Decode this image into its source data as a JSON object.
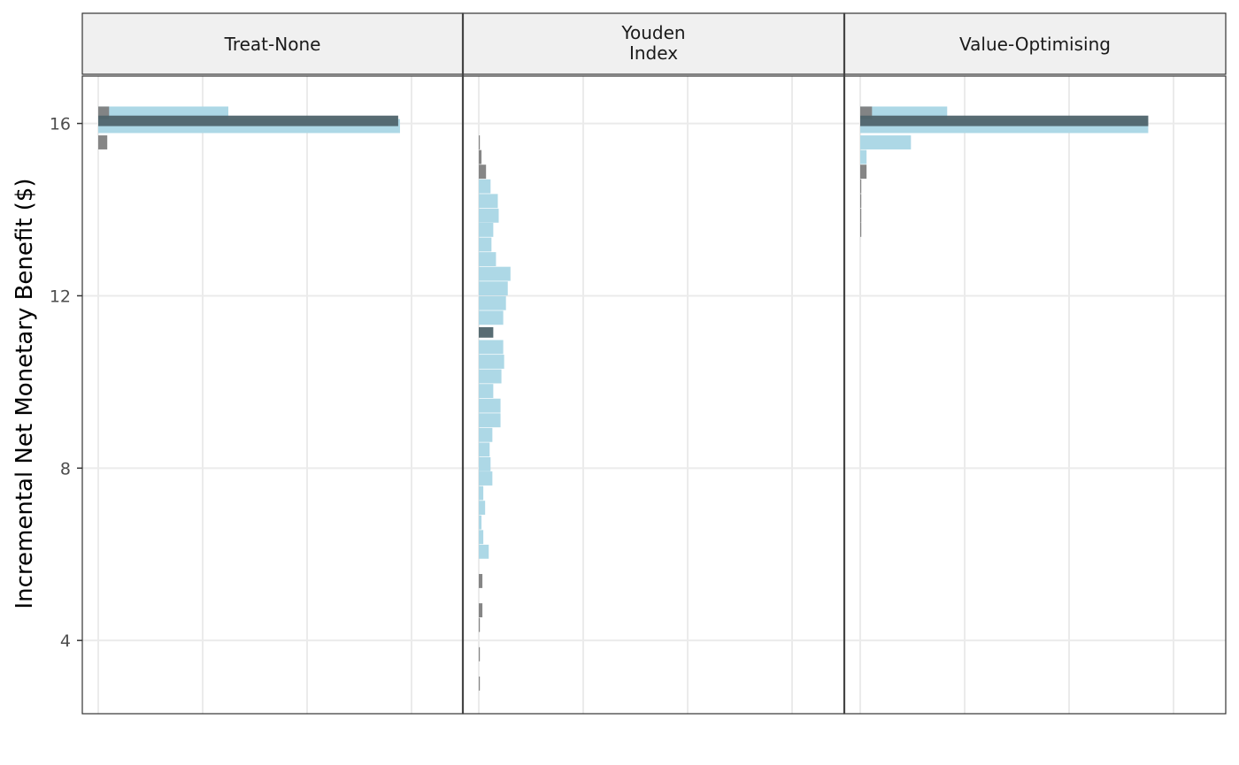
{
  "chart_data": {
    "type": "bar",
    "orientation": "horizontal-histogram",
    "ylabel": "Incremental Net Monetary Benefit ($)",
    "xlabel": "",
    "ylim": [
      2.3,
      17.1
    ],
    "yticks": [
      4,
      8,
      12,
      16
    ],
    "ytick_labels": [
      "4",
      "8",
      "12",
      "16"
    ],
    "bin_width": 0.338,
    "grid": true,
    "colors": {
      "light": "#add8e6",
      "grey": "#7f7f7f",
      "dark": "#4f646c"
    },
    "panels": [
      {
        "strip_lines": [
          "Treat-None"
        ],
        "bins": [
          {
            "y": 16.23,
            "value": 72,
            "color": "light"
          },
          {
            "y": 16.23,
            "value": 6,
            "color": "grey"
          },
          {
            "y": 15.94,
            "value": 167,
            "color": "light"
          },
          {
            "y": 16.06,
            "value": 166,
            "color": "dark"
          },
          {
            "y": 15.56,
            "value": 5,
            "color": "grey"
          }
        ]
      },
      {
        "strip_lines": [
          "Youden",
          "Index"
        ],
        "bins": [
          {
            "y": 15.56,
            "value": 0.3,
            "color": "grey"
          },
          {
            "y": 15.22,
            "value": 1.5,
            "color": "grey"
          },
          {
            "y": 14.88,
            "value": 4,
            "color": "grey"
          },
          {
            "y": 14.54,
            "value": 6.5,
            "color": "light"
          },
          {
            "y": 14.2,
            "value": 10.5,
            "color": "light"
          },
          {
            "y": 13.86,
            "value": 11,
            "color": "light"
          },
          {
            "y": 13.53,
            "value": 8,
            "color": "light"
          },
          {
            "y": 13.19,
            "value": 7,
            "color": "light"
          },
          {
            "y": 12.85,
            "value": 9.5,
            "color": "light"
          },
          {
            "y": 12.51,
            "value": 17.5,
            "color": "light"
          },
          {
            "y": 12.17,
            "value": 16,
            "color": "light"
          },
          {
            "y": 11.83,
            "value": 15,
            "color": "light"
          },
          {
            "y": 11.49,
            "value": 13.5,
            "color": "light"
          },
          {
            "y": 11.15,
            "value": 8,
            "color": "dark"
          },
          {
            "y": 10.81,
            "value": 13.5,
            "color": "light"
          },
          {
            "y": 10.47,
            "value": 14,
            "color": "light"
          },
          {
            "y": 10.13,
            "value": 12.5,
            "color": "light"
          },
          {
            "y": 9.79,
            "value": 8,
            "color": "light"
          },
          {
            "y": 9.45,
            "value": 12,
            "color": "light"
          },
          {
            "y": 9.11,
            "value": 12,
            "color": "light"
          },
          {
            "y": 8.77,
            "value": 7.5,
            "color": "light"
          },
          {
            "y": 8.43,
            "value": 6,
            "color": "light"
          },
          {
            "y": 8.09,
            "value": 6.5,
            "color": "light"
          },
          {
            "y": 7.76,
            "value": 7.5,
            "color": "light"
          },
          {
            "y": 7.42,
            "value": 2.5,
            "color": "light"
          },
          {
            "y": 7.08,
            "value": 3.5,
            "color": "light"
          },
          {
            "y": 6.74,
            "value": 1.5,
            "color": "light"
          },
          {
            "y": 6.4,
            "value": 2.5,
            "color": "light"
          },
          {
            "y": 6.06,
            "value": 5.5,
            "color": "light"
          },
          {
            "y": 5.38,
            "value": 2,
            "color": "grey"
          },
          {
            "y": 4.7,
            "value": 2,
            "color": "grey"
          },
          {
            "y": 4.36,
            "value": 0.5,
            "color": "grey"
          },
          {
            "y": 3.68,
            "value": 0.3,
            "color": "grey"
          },
          {
            "y": 3.0,
            "value": 0.3,
            "color": "grey"
          }
        ]
      },
      {
        "strip_lines": [
          "Value-Optimising"
        ],
        "bins": [
          {
            "y": 16.23,
            "value": 48,
            "color": "light"
          },
          {
            "y": 16.23,
            "value": 6.5,
            "color": "grey"
          },
          {
            "y": 15.94,
            "value": 159,
            "color": "light"
          },
          {
            "y": 16.06,
            "value": 159,
            "color": "dark"
          },
          {
            "y": 15.56,
            "value": 28,
            "color": "light"
          },
          {
            "y": 15.22,
            "value": 3.5,
            "color": "light"
          },
          {
            "y": 14.88,
            "value": 3.5,
            "color": "grey"
          },
          {
            "y": 14.54,
            "value": 0.3,
            "color": "grey"
          },
          {
            "y": 14.2,
            "value": 0.3,
            "color": "grey"
          },
          {
            "y": 13.86,
            "value": 0.3,
            "color": "grey"
          },
          {
            "y": 13.53,
            "value": 0.3,
            "color": "grey"
          }
        ]
      }
    ]
  }
}
